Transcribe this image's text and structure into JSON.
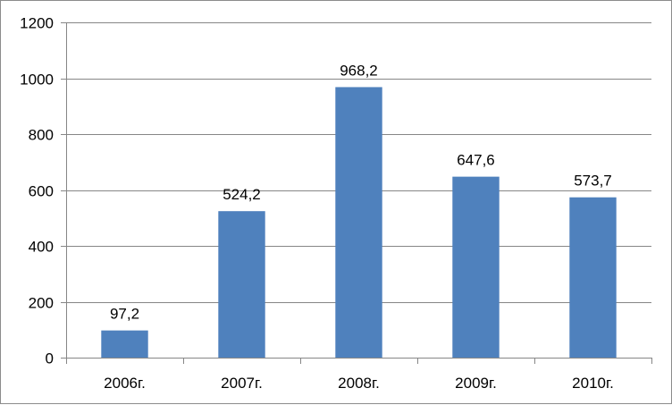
{
  "chart_data": {
    "type": "bar",
    "categories": [
      "2006г.",
      "2007г.",
      "2008г.",
      "2009г.",
      "2010г."
    ],
    "values": [
      97.2,
      524.2,
      968.2,
      647.6,
      573.7
    ],
    "data_labels": [
      "97,2",
      "524,2",
      "968,2",
      "647,6",
      "573,7"
    ],
    "y_ticks": [
      0,
      200,
      400,
      600,
      800,
      1000,
      1200
    ],
    "y_tick_labels": [
      "0",
      "200",
      "400",
      "600",
      "800",
      "1000",
      "1200"
    ],
    "ylim": [
      0,
      1200
    ],
    "title": "",
    "xlabel": "",
    "ylabel": "",
    "grid": "horizontal",
    "legend": "none",
    "bar_color": "#4f81bd",
    "gridline_color": "#868686"
  }
}
